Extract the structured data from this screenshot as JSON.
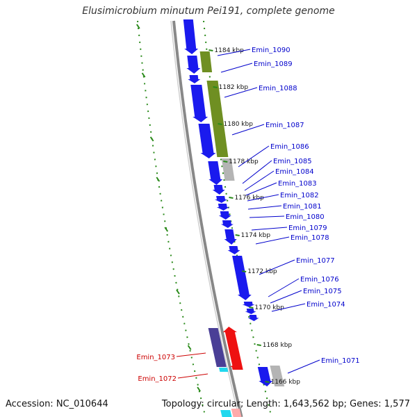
{
  "title": "Elusimicrobium minutum Pei191, complete genome",
  "footer": {
    "accession": "Accession: NC_010644",
    "summary": "Topology: circular; Length: 1,643,562 bp; Genes: 1,577"
  },
  "colors": {
    "backbone": "#888888",
    "gc_track": "#2a8a1a",
    "gene_blue": "#1a1aee",
    "gene_olive": "#6f8f22",
    "gene_grey": "#b4b4b4",
    "gene_red": "#ee1111",
    "gene_indigo": "#4a3f96",
    "gene_cyan": "#22d8ee",
    "gene_pink": "#ffaaaa",
    "label_blue": "#0000cc",
    "label_red": "#cc0000"
  },
  "ticks": [
    {
      "label": "1184 kbp"
    },
    {
      "label": "1182 kbp"
    },
    {
      "label": "1180 kbp"
    },
    {
      "label": "1178 kbp"
    },
    {
      "label": "1176 kbp"
    },
    {
      "label": "1174 kbp"
    },
    {
      "label": "1172 kbp"
    },
    {
      "label": "1170 kbp"
    },
    {
      "label": "1168 kbp"
    },
    {
      "label": "1166 kbp"
    }
  ],
  "gene_labels": [
    {
      "label": "Emin_1090",
      "strand": "forward"
    },
    {
      "label": "Emin_1089",
      "strand": "forward"
    },
    {
      "label": "Emin_1088",
      "strand": "forward"
    },
    {
      "label": "Emin_1087",
      "strand": "forward"
    },
    {
      "label": "Emin_1086",
      "strand": "forward"
    },
    {
      "label": "Emin_1085",
      "strand": "forward"
    },
    {
      "label": "Emin_1084",
      "strand": "forward"
    },
    {
      "label": "Emin_1083",
      "strand": "forward"
    },
    {
      "label": "Emin_1082",
      "strand": "forward"
    },
    {
      "label": "Emin_1081",
      "strand": "forward"
    },
    {
      "label": "Emin_1080",
      "strand": "forward"
    },
    {
      "label": "Emin_1079",
      "strand": "forward"
    },
    {
      "label": "Emin_1078",
      "strand": "forward"
    },
    {
      "label": "Emin_1077",
      "strand": "forward"
    },
    {
      "label": "Emin_1076",
      "strand": "forward"
    },
    {
      "label": "Emin_1075",
      "strand": "forward"
    },
    {
      "label": "Emin_1074",
      "strand": "forward"
    },
    {
      "label": "Emin_1071",
      "strand": "forward"
    },
    {
      "label": "Emin_1073",
      "strand": "reverse"
    },
    {
      "label": "Emin_1072",
      "strand": "reverse"
    }
  ]
}
